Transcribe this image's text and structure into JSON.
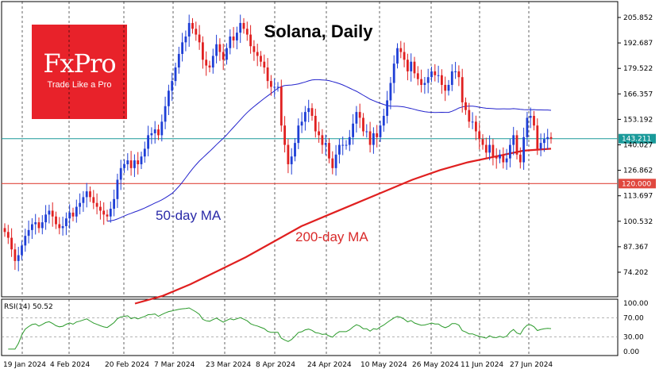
{
  "logo": {
    "brand": "FxPro",
    "tagline": "Trade Like a Pro"
  },
  "chart_data": {
    "type": "candlestick",
    "title": "Solana, Daily",
    "annotations": {
      "ma50": "50-day MA",
      "ma200": "200-day MA"
    },
    "y_ticks": [
      "205.852",
      "192.687",
      "179.522",
      "166.357",
      "153.192",
      "140.027",
      "126.862",
      "113.697",
      "100.532",
      "87.367",
      "74.202"
    ],
    "y_tick_values": [
      205.852,
      192.687,
      179.522,
      166.357,
      153.192,
      140.027,
      126.862,
      113.697,
      100.532,
      87.367,
      74.202
    ],
    "x_ticks": [
      "19 Jan 2024",
      "4 Feb 2024",
      "20 Feb 2024",
      "7 Mar 2024",
      "23 Mar 2024",
      "8 Apr 2024",
      "24 Apr 2024",
      "10 May 2024",
      "26 May 2024",
      "11 Jun 2024",
      "27 Jun 2024"
    ],
    "current_price": {
      "label": "143.211",
      "value": 143.211,
      "color": "#1a9a9a"
    },
    "support_level": {
      "label": "120.000",
      "value": 120.0,
      "color": "#e0483f"
    },
    "up_color": "#1f3fd6",
    "down_color": "#e02020",
    "ma50_color": "#2222cc",
    "ma200_color": "#e02020",
    "closes": [
      95,
      92,
      86,
      80,
      83,
      88,
      93,
      96,
      99,
      100,
      97,
      100,
      104,
      106,
      103,
      99,
      97,
      98,
      102,
      105,
      103,
      108,
      110,
      113,
      116,
      113,
      110,
      108,
      106,
      104,
      103,
      107,
      112,
      122,
      128,
      130,
      132,
      128,
      132,
      130,
      134,
      138,
      145,
      146,
      148,
      145,
      152,
      160,
      168,
      173,
      180,
      187,
      193,
      196,
      203,
      200,
      197,
      193,
      184,
      181,
      180,
      186,
      192,
      188,
      184,
      190,
      196,
      194,
      198,
      203,
      200,
      197,
      191,
      188,
      186,
      183,
      180,
      173,
      170,
      170,
      170,
      150,
      140,
      130,
      134,
      141,
      150,
      152,
      157,
      159,
      155,
      147,
      145,
      140,
      141,
      133,
      128,
      135,
      140,
      140,
      140,
      144,
      151,
      157,
      154,
      147,
      147,
      140,
      146,
      144,
      150,
      155,
      163,
      172,
      182,
      190,
      188,
      184,
      178,
      183,
      177,
      174,
      171,
      172,
      175,
      178,
      176,
      176,
      171,
      168,
      171,
      178,
      178,
      175,
      162,
      158,
      152,
      152,
      147,
      143,
      140,
      136,
      140,
      134,
      133,
      135,
      131,
      133,
      140,
      145,
      135,
      131,
      144,
      154,
      155,
      150,
      138,
      141,
      143,
      144,
      143.211
    ],
    "ma50_start": 30,
    "ma200_values": [
      58,
      62,
      68,
      75,
      82,
      90,
      98,
      104,
      110,
      116,
      122,
      127,
      131,
      134,
      137,
      138
    ],
    "rsi": {
      "label": "RSI(14) 50.52",
      "ticks": [
        "100.00",
        "70.00",
        "30.00",
        "0.00"
      ],
      "tick_values": [
        100,
        70,
        30,
        0
      ],
      "levels": [
        70,
        30
      ]
    }
  }
}
